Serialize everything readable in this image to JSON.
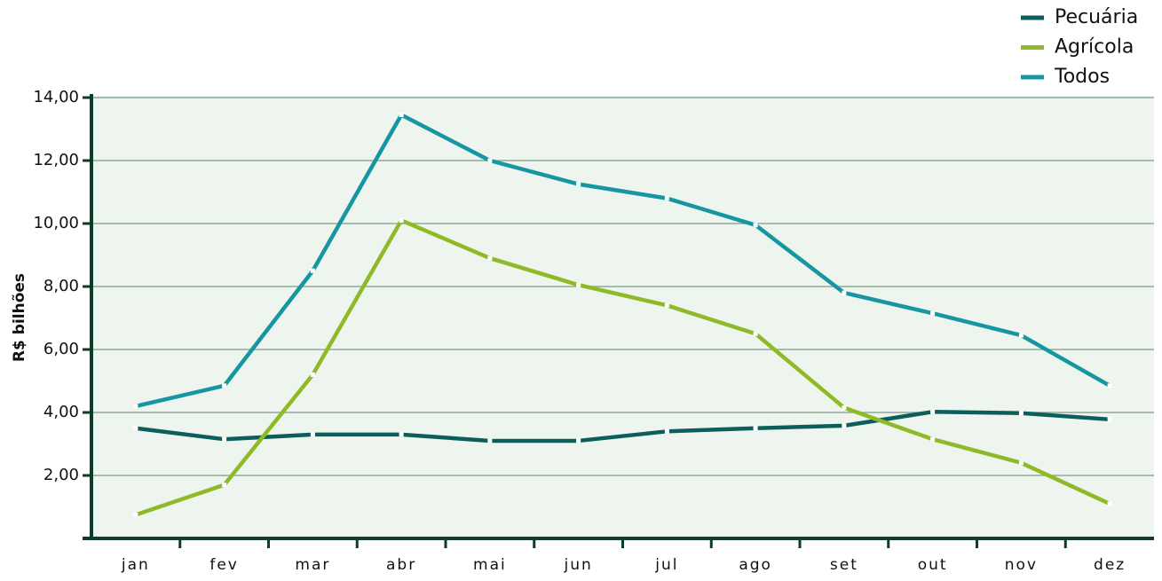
{
  "chart_data": {
    "type": "line",
    "y_label": "R$ bilhões",
    "categories": [
      "jan",
      "fev",
      "mar",
      "abr",
      "mai",
      "jun",
      "jul",
      "ago",
      "set",
      "out",
      "nov",
      "dez"
    ],
    "series": [
      {
        "name": "Pecuária",
        "color": "#0d5e5a",
        "values": [
          3.5,
          3.15,
          3.3,
          3.3,
          3.1,
          3.1,
          3.4,
          3.5,
          3.58,
          4.02,
          3.98,
          3.78
        ]
      },
      {
        "name": "Agrícola",
        "color": "#8fba27",
        "values": [
          0.75,
          1.7,
          5.2,
          10.1,
          8.9,
          8.05,
          7.4,
          6.5,
          4.15,
          3.15,
          2.4,
          1.1
        ]
      },
      {
        "name": "Todos",
        "color": "#1596a1",
        "values": [
          4.2,
          4.85,
          8.5,
          13.45,
          12.0,
          11.25,
          10.8,
          9.95,
          7.8,
          7.15,
          6.45,
          4.85
        ]
      }
    ],
    "ylim": [
      0,
      14
    ],
    "yticks": [
      {
        "value": 2,
        "label": "2,00"
      },
      {
        "value": 4,
        "label": "4,00"
      },
      {
        "value": 6,
        "label": "6,00"
      },
      {
        "value": 8,
        "label": "8,00"
      },
      {
        "value": 10,
        "label": "10,00"
      },
      {
        "value": 12,
        "label": "12,00"
      },
      {
        "value": 14,
        "label": "14,00"
      }
    ],
    "grid": true,
    "legend": "top-right"
  }
}
